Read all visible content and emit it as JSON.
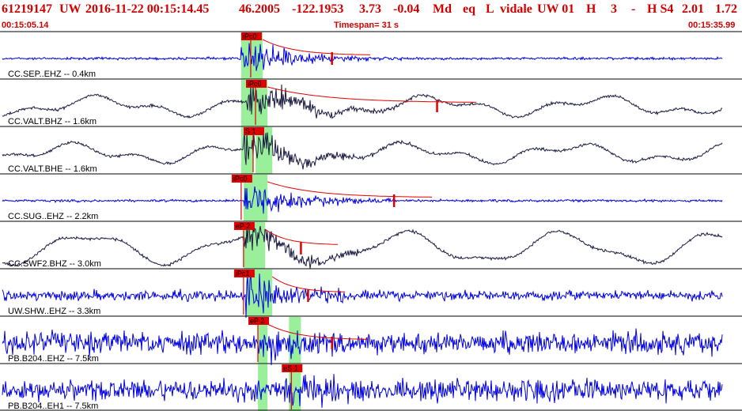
{
  "header": {
    "event_id": "61219147",
    "network": "UW",
    "origin_time": "2016-11-22 00:15:14.45",
    "latitude": "46.2005",
    "longitude": "-122.1953",
    "depth": "3.73",
    "magnitude": "-0.04",
    "magnitude_type": "Md",
    "event_type": "eq",
    "location_flag": "L",
    "analyst": "vidale",
    "source": "UW 01",
    "flag_h": "H",
    "count": "3",
    "dash": "-",
    "quality": "H S4",
    "value_1": "2.01",
    "value_2": "1.72"
  },
  "timebar": {
    "start": "00:15:05.14",
    "timespan": "Timespan=  31 s",
    "end": "00:15:35.99"
  },
  "colors": {
    "header_text": "#d40000",
    "pick_label_bg": "#e00000",
    "pick_line": "#e00000",
    "window_highlight": "#9af09a",
    "trace_blue": "#0000e6",
    "trace_black": "#1a1a40"
  },
  "chart_data": {
    "type": "line",
    "title": "",
    "time_start_s": 0,
    "time_end_s": 31,
    "traces": [
      {
        "label": "CC.SEP..EHZ -- 0.4km",
        "color": "trace_blue",
        "style": "impulsive",
        "picks": [
          {
            "label": "iPc0",
            "t": 10.1
          }
        ],
        "windows": [
          [
            10.1,
            11.0
          ]
        ],
        "coda_end_t": 13.9
      },
      {
        "label": "CC.VALT.BHZ -- 1.6km",
        "color": "trace_black",
        "style": "swell",
        "picks": [
          {
            "label": "iPc0",
            "t": 10.3
          }
        ],
        "windows": [
          [
            10.1,
            11.2
          ]
        ],
        "coda_end_t": 18.3
      },
      {
        "label": "CC.VALT.BHE -- 1.6km",
        "color": "trace_black",
        "style": "swell",
        "picks": [
          {
            "label": "S 1",
            "t": 10.2
          }
        ],
        "windows": [
          [
            10.1,
            10.6
          ],
          [
            10.7,
            11.4
          ]
        ],
        "coda_end_t": null
      },
      {
        "label": "CC.SUG..EHZ -- 2.2km",
        "color": "trace_blue",
        "style": "impulsive",
        "picks": [
          {
            "label": "iPc0",
            "t": 9.7
          }
        ],
        "windows": [
          [
            10.2,
            11.2
          ]
        ],
        "coda_end_t": 16.5
      },
      {
        "label": "CC.SWF2.BHZ -- 3.0km",
        "color": "trace_black",
        "style": "wave",
        "picks": [
          {
            "label": "eP 2",
            "t": 9.8
          }
        ],
        "windows": [
          [
            10.2,
            11.1
          ]
        ],
        "coda_end_t": 12.6
      },
      {
        "label": "UW.SHW..EHZ -- 3.3km",
        "color": "trace_blue",
        "style": "noisy",
        "picks": [
          {
            "label": "iPc1",
            "t": 9.8
          }
        ],
        "windows": [
          [
            10.3,
            11.4
          ]
        ],
        "coda_end_t": 12.9
      },
      {
        "label": "PB.B204..EHZ -- 7.5km",
        "color": "trace_blue",
        "style": "very_noisy",
        "picks": [
          {
            "label": "eP 2",
            "t": 10.4
          }
        ],
        "windows": [
          [
            10.8,
            11.2
          ],
          [
            12.1,
            12.6
          ]
        ],
        "coda_end_t": 13.9
      },
      {
        "label": "PB.B204..EH1 -- 7.5km",
        "color": "trace_blue",
        "style": "very_noisy",
        "picks": [
          {
            "label": "eS 1",
            "t": 11.8
          }
        ],
        "windows": [
          [
            10.8,
            11.2
          ],
          [
            12.1,
            12.6
          ]
        ],
        "coda_end_t": null
      }
    ]
  }
}
